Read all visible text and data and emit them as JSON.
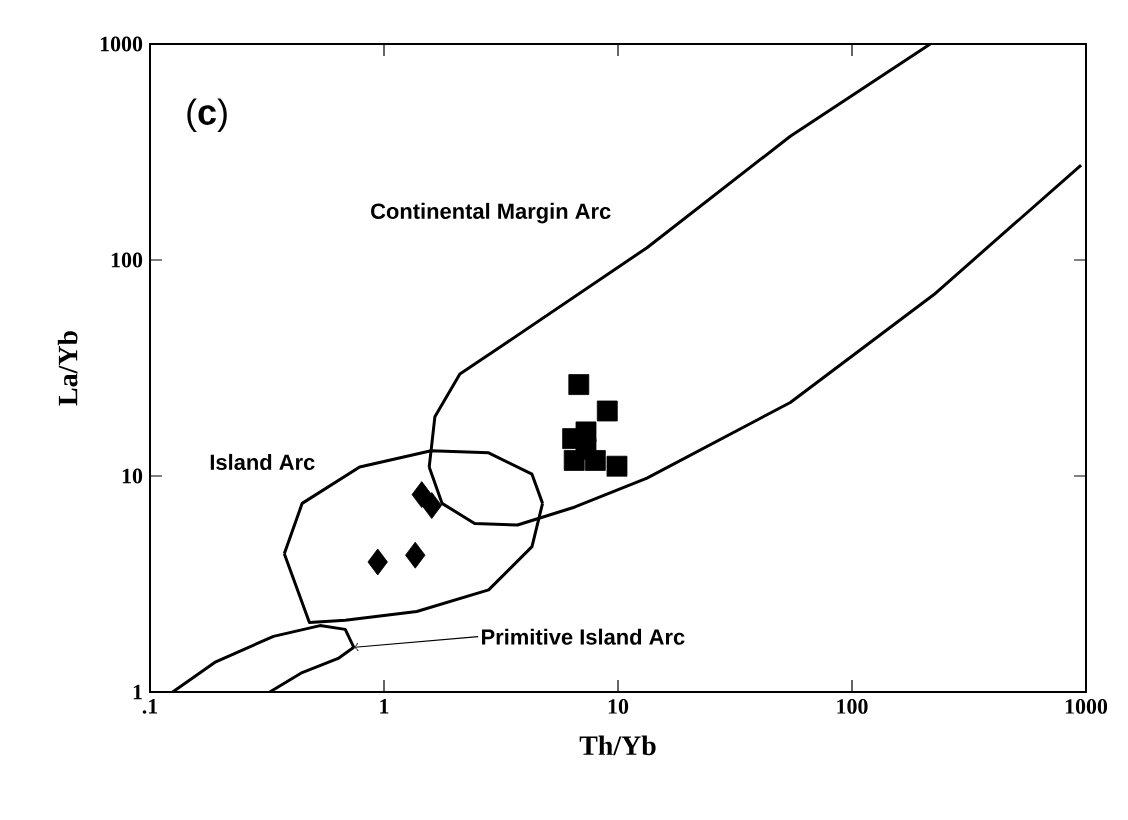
{
  "chart_data": {
    "type": "scatter",
    "xlabel": "Th/Yb",
    "ylabel": "La/Yb",
    "log": "xy",
    "grid": false,
    "xlim": [
      0.1,
      1000
    ],
    "ylim": [
      1,
      1000
    ],
    "xticks": [
      {
        "value": 0.1,
        "label": ".1"
      },
      1,
      10,
      100,
      1000
    ],
    "yticks": [
      1,
      10,
      100,
      1000
    ],
    "annotations": [
      "(**c**)",
      "Continental Margin Arc",
      "Island Arc",
      {
        "text": "Primitive Island Arc",
        "x": 0.743,
        "y": 1.61
      }
    ],
    "series": [
      {
        "marker": "diamond",
        "color": "#000000",
        "x": [
          0.94,
          1.36,
          1.45,
          1.6
        ],
        "values": [
          4.0,
          4.3,
          8.2,
          7.3
        ]
      },
      {
        "marker": "square",
        "color": "#000000",
        "x": [
          6.8,
          9.0,
          9.9,
          6.4,
          7.3,
          6.5,
          8.0,
          7.3
        ],
        "values": [
          26.5,
          20,
          11.1,
          14.9,
          16,
          11.8,
          11.8,
          13.3
        ]
      },
      {
        "type": "line",
        "marker": "none",
        "color": "#000000",
        "x": [
          1.56,
          1.65,
          2.11,
          3.23,
          13.3,
          54.5,
          216
        ],
        "values": [
          11.0,
          18.8,
          29.7,
          40.4,
          114,
          374,
          1000
        ]
      },
      {
        "type": "line",
        "marker": "none",
        "color": "#000000",
        "x": [
          1.56,
          1.77,
          2.44,
          3.72,
          6.55,
          13.3,
          54.5,
          224,
          953
        ],
        "values": [
          11.0,
          7.47,
          6.03,
          5.93,
          7.19,
          9.77,
          21.9,
          69.2,
          275
        ]
      },
      {
        "type": "line",
        "marker": "none",
        "color": "#000000",
        "x": [
          0.375,
          0.447,
          0.787,
          1.59,
          2.8,
          4.29,
          4.76
        ],
        "values": [
          4.37,
          7.47,
          11.0,
          13.1,
          12.8,
          10.2,
          7.47
        ]
      },
      {
        "type": "line",
        "marker": "none",
        "color": "#000000",
        "x": [
          0.375,
          0.48,
          0.683,
          1.38,
          2.8,
          4.29,
          4.76
        ],
        "values": [
          4.37,
          2.1,
          2.15,
          2.36,
          2.97,
          4.71,
          7.47
        ]
      },
      {
        "type": "line",
        "marker": "none",
        "color": "#000000",
        "x": [
          0.125,
          0.191,
          0.337,
          0.533,
          0.683,
          0.743
        ],
        "values": [
          1,
          1.38,
          1.81,
          2.03,
          1.95,
          1.61
        ]
      },
      {
        "type": "line",
        "marker": "none",
        "color": "#000000",
        "x": [
          0.325,
          0.447,
          0.637,
          0.743
        ],
        "values": [
          1,
          1.23,
          1.43,
          1.61
        ]
      }
    ]
  }
}
